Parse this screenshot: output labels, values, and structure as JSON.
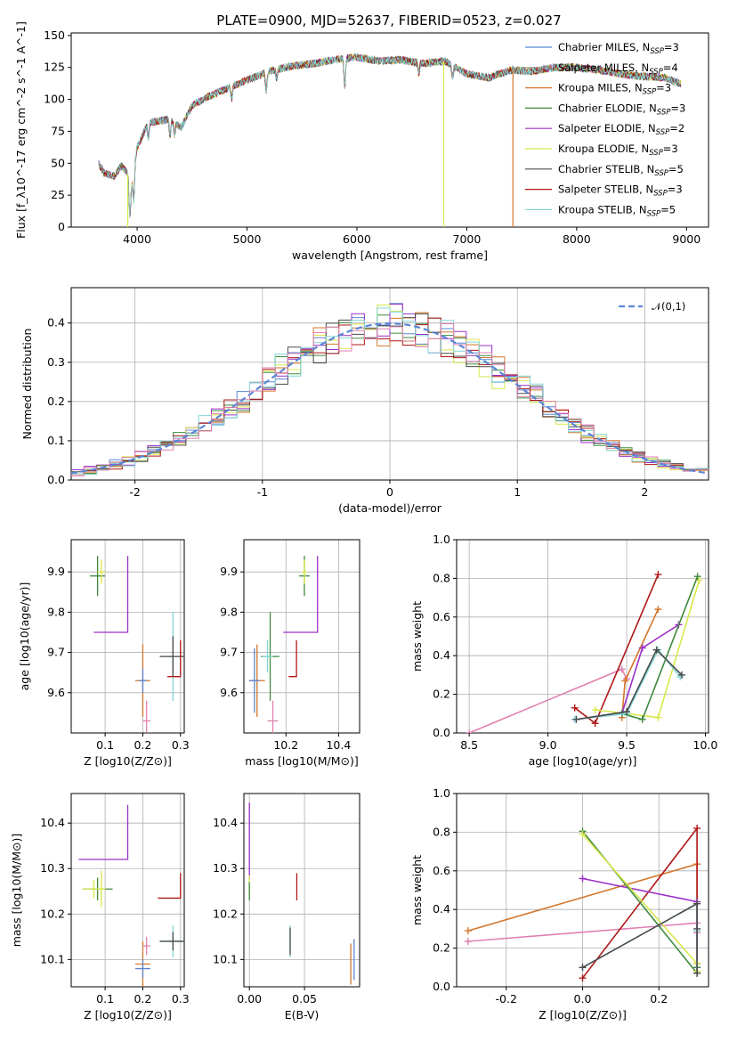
{
  "figure": {
    "title": "PLATE=0900, MJD=52637, FIBERID=0523, z=0.027"
  },
  "colors": [
    "#5b86d4",
    "#9a9a9a",
    "#d4762a",
    "#3f8a3f",
    "#9b30c8",
    "#d8e84a",
    "#4a4a4a",
    "#b01818",
    "#82d6d8",
    "#e080b0"
  ],
  "chart_data": [
    {
      "type": "line",
      "panel": "spectrum",
      "title": "PLATE=0900, MJD=52637, FIBERID=0523, z=0.027",
      "xlabel": "wavelength [Angstrom, rest frame]",
      "ylabel": "Flux [f_λ10^-17 erg cm^-2 s^-1 A^-1]",
      "xlim": [
        3400,
        9200
      ],
      "ylim": [
        0,
        152
      ],
      "xticks": [
        4000,
        5000,
        6000,
        7000,
        8000,
        9000
      ],
      "yticks": [
        0,
        25,
        50,
        75,
        100,
        125,
        150
      ],
      "legend_position": "right",
      "series": [
        {
          "name": "Chabrier MILES, N_SSP=3",
          "legend_main": "Chabrier MILES, N",
          "legend_sub": "SSP",
          "legend_tail": "=3",
          "color": "#5b86d4"
        },
        {
          "name": "Salpeter MILES, N_SSP=4",
          "legend_main": "Salpeter MILES, N",
          "legend_sub": "SSP",
          "legend_tail": "=4",
          "color": "#9a9a9a"
        },
        {
          "name": "Kroupa MILES, N_SSP=3",
          "legend_main": "Kroupa MILES, N",
          "legend_sub": "SSP",
          "legend_tail": "=3",
          "color": "#d4762a"
        },
        {
          "name": "Chabrier ELODIE, N_SSP=3",
          "legend_main": "Chabrier ELODIE, N",
          "legend_sub": "SSP",
          "legend_tail": "=3",
          "color": "#3f8a3f"
        },
        {
          "name": "Salpeter ELODIE, N_SSP=2",
          "legend_main": "Salpeter ELODIE, N",
          "legend_sub": "SSP",
          "legend_tail": "=2",
          "color": "#9b30c8"
        },
        {
          "name": "Kroupa ELODIE, N_SSP=3",
          "legend_main": "Kroupa ELODIE, N",
          "legend_sub": "SSP",
          "legend_tail": "=3",
          "color": "#d8e84a"
        },
        {
          "name": "Chabrier STELIB, N_SSP=5",
          "legend_main": "Chabrier STELIB, N",
          "legend_sub": "SSP",
          "legend_tail": "=5",
          "color": "#4a4a4a"
        },
        {
          "name": "Salpeter STELIB, N_SSP=3",
          "legend_main": "Salpeter STELIB, N",
          "legend_sub": "SSP",
          "legend_tail": "=3",
          "color": "#b01818"
        },
        {
          "name": "Kroupa STELIB, N_SSP=5",
          "legend_main": "Kroupa STELIB, N",
          "legend_sub": "SSP",
          "legend_tail": "=5",
          "color": "#82d6d8"
        }
      ],
      "spectrum_shape": {
        "x": [
          3650,
          3700,
          3800,
          3850,
          3900,
          3950,
          4000,
          4100,
          4200,
          4300,
          4400,
          4500,
          4600,
          4800,
          5000,
          5200,
          5400,
          5600,
          5800,
          6000,
          6200,
          6400,
          6600,
          6800,
          7000,
          7200,
          7400,
          7600,
          7800,
          8000,
          8200,
          8400,
          8600,
          8800,
          8950
        ],
        "y": [
          50,
          42,
          40,
          48,
          44,
          35,
          62,
          82,
          83,
          85,
          78,
          95,
          100,
          108,
          115,
          122,
          126,
          128,
          131,
          133,
          130,
          131,
          128,
          130,
          120,
          117,
          123,
          122,
          125,
          125,
          123,
          120,
          118,
          117,
          112
        ]
      },
      "spectrum_dropouts": [
        {
          "x": 3915,
          "series": 5
        },
        {
          "x": 6790,
          "series": 5
        },
        {
          "x": 7420,
          "series": 2
        }
      ]
    },
    {
      "type": "step",
      "panel": "residual_histogram",
      "xlabel": "(data-model)/error",
      "ylabel": "Normed distribution",
      "xlim": [
        -2.5,
        2.5
      ],
      "ylim": [
        0,
        0.49
      ],
      "xticks": [
        -2,
        -1,
        0,
        1,
        2
      ],
      "yticks": [
        0.0,
        0.1,
        0.2,
        0.3,
        0.4
      ],
      "reference": {
        "name": "𝒩(0,1)",
        "type": "gaussian",
        "mean": 0,
        "sigma": 1,
        "color": "#5b86d4"
      },
      "bin_width": 0.1,
      "legend_position": "top-right"
    },
    {
      "type": "errorbar",
      "panel": "age_vs_Z",
      "xlabel": "Z [log10(Z/Z⊙)]",
      "ylabel": "age [log10(age/yr)]",
      "xlim": [
        0.01,
        0.31
      ],
      "ylim": [
        9.5,
        9.98
      ],
      "xticks": [
        0.1,
        0.2,
        0.3
      ],
      "yticks": [
        9.6,
        9.7,
        9.8,
        9.9
      ],
      "points": [
        {
          "x": 0.08,
          "y": 9.89,
          "xe": 0.02,
          "ye": 0.05,
          "c": 3
        },
        {
          "x": 0.09,
          "y": 9.9,
          "xe": 0.01,
          "ye": 0.03,
          "c": 5
        },
        {
          "x": 0.16,
          "y": 9.75,
          "xe": 0.09,
          "ye": 0.19,
          "c": 4,
          "style": "corner"
        },
        {
          "x": 0.2,
          "y": 9.63,
          "xe": 0.02,
          "ye": 0.09,
          "c": 2
        },
        {
          "x": 0.2,
          "y": 9.63,
          "xe": 0.01,
          "ye": 0.03,
          "c": 0
        },
        {
          "x": 0.21,
          "y": 9.53,
          "xe": 0.01,
          "ye": 0.05,
          "c": 9
        },
        {
          "x": 0.28,
          "y": 9.69,
          "xe": 0.03,
          "ye": 0.11,
          "c": 8
        },
        {
          "x": 0.28,
          "y": 9.69,
          "xe": 0.035,
          "ye": 0.05,
          "c": 6
        },
        {
          "x": 0.3,
          "y": 9.64,
          "xe": 0.035,
          "ye": 0.09,
          "c": 7,
          "style": "corner"
        }
      ]
    },
    {
      "type": "errorbar",
      "panel": "age_vs_mass",
      "xlabel": "mass [log10(M/M⊙)]",
      "ylabel": "",
      "xlim": [
        10.04,
        10.48
      ],
      "ylim": [
        9.5,
        9.98
      ],
      "xticks": [
        10.2,
        10.4
      ],
      "yticks": [
        9.6,
        9.7,
        9.8,
        9.9
      ],
      "points": [
        {
          "x": 10.14,
          "y": 9.69,
          "xe": 0.035,
          "ye": 0.11,
          "c": 3
        },
        {
          "x": 10.13,
          "y": 9.69,
          "xe": 0.02,
          "ye": 0.04,
          "c": 8
        },
        {
          "x": 10.09,
          "y": 9.63,
          "xe": 0.03,
          "ye": 0.09,
          "c": 2
        },
        {
          "x": 10.08,
          "y": 9.63,
          "xe": 0.02,
          "ye": 0.08,
          "c": 0
        },
        {
          "x": 10.27,
          "y": 9.89,
          "xe": 0.02,
          "ye": 0.05,
          "c": 3
        },
        {
          "x": 10.27,
          "y": 9.9,
          "xe": 0.01,
          "ye": 0.03,
          "c": 5
        },
        {
          "x": 10.32,
          "y": 9.75,
          "xe": 0.13,
          "ye": 0.19,
          "c": 4,
          "style": "corner"
        },
        {
          "x": 10.24,
          "y": 9.64,
          "xe": 0.03,
          "ye": 0.09,
          "c": 7,
          "style": "corner"
        },
        {
          "x": 10.15,
          "y": 9.53,
          "xe": 0.02,
          "ye": 0.05,
          "c": 9
        }
      ]
    },
    {
      "type": "line",
      "panel": "mass_weight_vs_age",
      "xlabel": "age [log10(age/yr)]",
      "ylabel": "mass weight",
      "xlim": [
        8.42,
        10.02
      ],
      "ylim": [
        0,
        1
      ],
      "xticks": [
        8.5,
        9.0,
        9.5,
        10.0
      ],
      "yticks": [
        0.0,
        0.2,
        0.4,
        0.6,
        0.8,
        1.0
      ],
      "series": [
        {
          "c": 9,
          "x": [
            8.5,
            9.47,
            9.5
          ],
          "y": [
            0.0,
            0.33,
            0.28
          ]
        },
        {
          "c": 7,
          "x": [
            9.17,
            9.3,
            9.7
          ],
          "y": [
            0.13,
            0.05,
            0.82
          ]
        },
        {
          "c": 2,
          "x": [
            9.47,
            9.49,
            9.7
          ],
          "y": [
            0.08,
            0.27,
            0.64
          ]
        },
        {
          "c": 4,
          "x": [
            9.47,
            9.6,
            9.83
          ],
          "y": [
            0.1,
            0.44,
            0.56
          ]
        },
        {
          "c": 5,
          "x": [
            9.3,
            9.7,
            9.96
          ],
          "y": [
            0.12,
            0.08,
            0.79
          ]
        },
        {
          "c": 3,
          "x": [
            9.47,
            9.6,
            9.95
          ],
          "y": [
            0.1,
            0.07,
            0.81
          ]
        },
        {
          "c": 8,
          "x": [
            9.17,
            9.5,
            9.7,
            9.84
          ],
          "y": [
            0.07,
            0.1,
            0.43,
            0.29
          ]
        },
        {
          "c": 6,
          "x": [
            9.18,
            9.5,
            9.69,
            9.85
          ],
          "y": [
            0.07,
            0.11,
            0.43,
            0.3
          ]
        }
      ]
    },
    {
      "type": "errorbar",
      "panel": "mass_vs_Z",
      "xlabel": "Z [log10(Z/Z⊙)]",
      "ylabel": "mass [log10(M/M⊙)]",
      "xlim": [
        0.01,
        0.31
      ],
      "ylim": [
        10.04,
        10.465
      ],
      "xticks": [
        0.1,
        0.2,
        0.3
      ],
      "yticks": [
        10.1,
        10.2,
        10.3,
        10.4
      ],
      "points": [
        {
          "x": 0.08,
          "y": 10.255,
          "xe": 0.04,
          "ye": 0.025,
          "c": 3
        },
        {
          "x": 0.07,
          "y": 10.255,
          "xe": 0.03,
          "ye": 0.02,
          "c": 5
        },
        {
          "x": 0.09,
          "y": 10.255,
          "xe": 0.01,
          "ye": 0.04,
          "c": 5
        },
        {
          "x": 0.16,
          "y": 10.32,
          "xe": 0.13,
          "ye": 0.12,
          "c": 4,
          "style": "corner"
        },
        {
          "x": 0.2,
          "y": 10.09,
          "xe": 0.02,
          "ye": 0.05,
          "c": 2
        },
        {
          "x": 0.2,
          "y": 10.08,
          "xe": 0.02,
          "ye": 0.02,
          "c": 0
        },
        {
          "x": 0.21,
          "y": 10.13,
          "xe": 0.01,
          "ye": 0.02,
          "c": 9
        },
        {
          "x": 0.28,
          "y": 10.14,
          "xe": 0.035,
          "ye": 0.035,
          "c": 8
        },
        {
          "x": 0.28,
          "y": 10.14,
          "xe": 0.035,
          "ye": 0.02,
          "c": 6
        },
        {
          "x": 0.3,
          "y": 10.235,
          "xe": 0.06,
          "ye": 0.055,
          "c": 7,
          "style": "corner"
        }
      ]
    },
    {
      "type": "errorbar",
      "panel": "mass_vs_EBV",
      "xlabel": "E(B-V)",
      "ylabel": "",
      "xlim": [
        -0.005,
        0.1
      ],
      "ylim": [
        10.04,
        10.465
      ],
      "xticks": [
        0.0,
        0.05
      ],
      "yticks": [
        10.1,
        10.2,
        10.3,
        10.4
      ],
      "points": [
        {
          "x": 0.0,
          "y": 10.36,
          "xe": 0,
          "ye": 0.085,
          "c": 4
        },
        {
          "x": 0.0,
          "y": 10.26,
          "xe": 0,
          "ye": 0.025,
          "c": 5
        },
        {
          "x": 0.0,
          "y": 10.25,
          "xe": 0,
          "ye": 0.02,
          "c": 3
        },
        {
          "x": 0.037,
          "y": 10.14,
          "xe": 0,
          "ye": 0.035,
          "c": 8
        },
        {
          "x": 0.037,
          "y": 10.14,
          "xe": 0,
          "ye": 0.03,
          "c": 6
        },
        {
          "x": 0.043,
          "y": 10.26,
          "xe": 0,
          "ye": 0.03,
          "c": 7
        },
        {
          "x": 0.092,
          "y": 10.09,
          "xe": 0,
          "ye": 0.045,
          "c": 2
        },
        {
          "x": 0.095,
          "y": 10.1,
          "xe": 0,
          "ye": 0.045,
          "c": 0
        }
      ]
    },
    {
      "type": "line",
      "panel": "mass_weight_vs_Z",
      "xlabel": "Z [log10(Z/Z⊙)]",
      "ylabel": "mass weight",
      "xlim": [
        -0.33,
        0.33
      ],
      "ylim": [
        0,
        1
      ],
      "xticks": [
        -0.2,
        0.0,
        0.2
      ],
      "yticks": [
        0.0,
        0.2,
        0.4,
        0.6,
        0.8,
        1.0
      ],
      "series": [
        {
          "c": 9,
          "x": [
            -0.3,
            0.3,
            0.3
          ],
          "y": [
            0.235,
            0.33,
            0.28
          ]
        },
        {
          "c": 2,
          "x": [
            -0.3,
            0.3,
            0.3
          ],
          "y": [
            0.29,
            0.635,
            0.08
          ]
        },
        {
          "c": 7,
          "x": [
            0.0,
            0.3,
            0.3
          ],
          "y": [
            0.045,
            0.82,
            0.12
          ]
        },
        {
          "c": 4,
          "x": [
            0.0,
            0.3,
            0.3
          ],
          "y": [
            0.56,
            0.44,
            0.1
          ]
        },
        {
          "c": 3,
          "x": [
            0.0,
            0.3,
            0.3
          ],
          "y": [
            0.805,
            0.07,
            0.1
          ]
        },
        {
          "c": 5,
          "x": [
            0.0,
            0.3,
            0.3
          ],
          "y": [
            0.79,
            0.12,
            0.08
          ]
        },
        {
          "c": 8,
          "x": [
            0.0,
            0.3,
            0.3,
            0.3
          ],
          "y": [
            0.1,
            0.43,
            0.29,
            0.07
          ]
        },
        {
          "c": 6,
          "x": [
            0.0,
            0.3,
            0.3,
            0.3
          ],
          "y": [
            0.1,
            0.43,
            0.3,
            0.07
          ]
        }
      ]
    }
  ]
}
